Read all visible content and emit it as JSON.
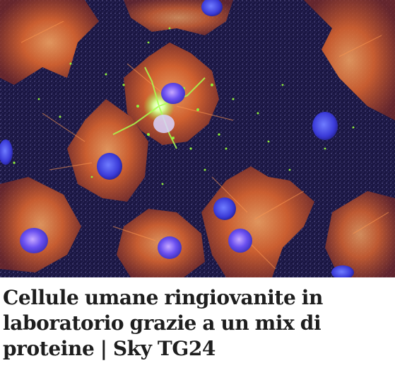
{
  "article": {
    "image_alt": "Cellule umane ringiovanite in laboratorio grazie a un mix di proteine",
    "title": "Cellule umane ringiovanite in laboratorio grazie a un mix di proteine | Sky TG24"
  },
  "colors": {
    "background": "#16133c",
    "cytoskeleton": "#d9642e",
    "nucleus": "#4b3fe0",
    "marker": "#8ff03a",
    "headline_text": "#1e1e1e"
  }
}
